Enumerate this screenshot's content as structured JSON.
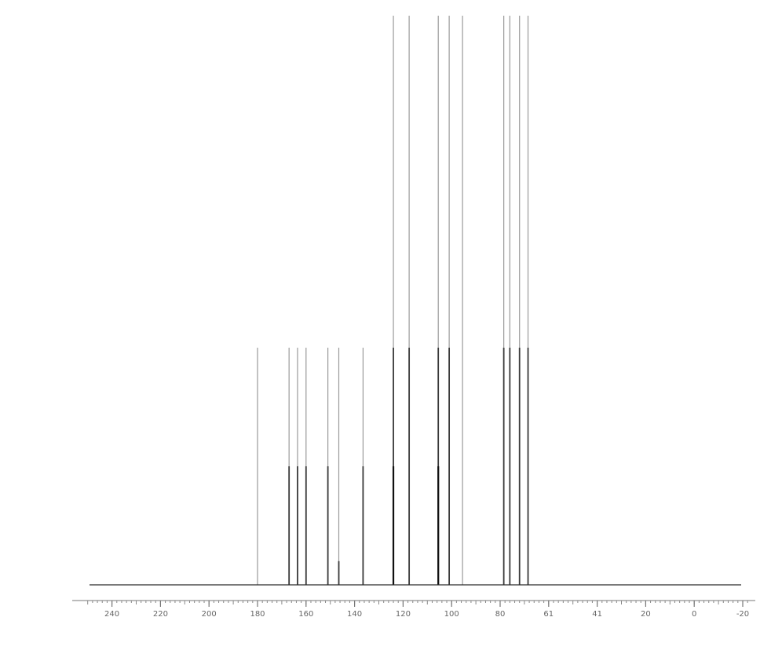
{
  "chart_data": {
    "type": "stem",
    "title": "",
    "xlabel": "",
    "ylabel": "",
    "xlim": [
      250,
      -22
    ],
    "ylim": [
      0,
      2.4
    ],
    "x_reversed": true,
    "grid": false,
    "axis_ticks": [
      "240",
      "220",
      "200",
      "180",
      "160",
      "140",
      "120",
      "100",
      "80",
      "61",
      "41",
      "20",
      "0",
      "-20"
    ],
    "peaks": [
      {
        "x": 180,
        "heights": [
          1.0
        ]
      },
      {
        "x": 167,
        "heights": [
          1.0,
          0.5
        ]
      },
      {
        "x": 163.5,
        "heights": [
          1.0,
          0.5
        ]
      },
      {
        "x": 160,
        "heights": [
          1.0,
          0.5
        ]
      },
      {
        "x": 151,
        "heights": [
          1.0,
          0.5
        ]
      },
      {
        "x": 146.5,
        "heights": [
          1.0,
          0.1
        ]
      },
      {
        "x": 136.5,
        "heights": [
          1.0,
          0.5
        ]
      },
      {
        "x": 124,
        "heights": [
          2.4,
          1.0,
          0.5
        ]
      },
      {
        "x": 117.5,
        "heights": [
          2.4,
          1.0
        ]
      },
      {
        "x": 105.5,
        "heights": [
          2.4,
          1.0,
          0.5
        ]
      },
      {
        "x": 101,
        "heights": [
          2.4,
          1.0
        ]
      },
      {
        "x": 95.5,
        "heights": [
          2.4
        ]
      },
      {
        "x": 78.5,
        "heights": [
          2.4,
          1.0
        ]
      },
      {
        "x": 76,
        "heights": [
          2.4,
          1.0
        ]
      },
      {
        "x": 72,
        "heights": [
          2.4,
          1.0
        ]
      },
      {
        "x": 68.5,
        "heights": [
          2.4,
          1.0
        ]
      }
    ]
  }
}
